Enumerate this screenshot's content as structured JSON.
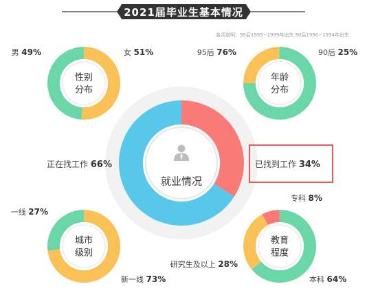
{
  "title": "2021届毕业生基本情况",
  "note": "名词说明：95后1995~1999年出生  90后1990~1994年出生",
  "colors": {
    "green": "#6bd6a7",
    "yellow": "#fac156",
    "blue": "#58c8ea",
    "red": "#fa7a78",
    "title_bg": "#333333",
    "highlight": "#e0312e"
  },
  "chart_data": [
    {
      "type": "pie",
      "title": "性别分布",
      "center_lines": [
        "性别",
        "分布"
      ],
      "slices": [
        {
          "label": "男",
          "value": 49,
          "pct_text": "49%",
          "color": "#6bd6a7"
        },
        {
          "label": "女",
          "value": 51,
          "pct_text": "51%",
          "color": "#fac156"
        }
      ]
    },
    {
      "type": "pie",
      "title": "年龄分布",
      "center_lines": [
        "年龄",
        "分布"
      ],
      "slices": [
        {
          "label": "95后",
          "value": 76,
          "pct_text": "76%",
          "color": "#6bd6a7"
        },
        {
          "label": "90后",
          "value": 25,
          "pct_text": "25%",
          "color": "#fac156"
        }
      ]
    },
    {
      "type": "pie",
      "title": "就业情况",
      "center_lines": [
        "就业情况"
      ],
      "slices": [
        {
          "label": "正在找工作",
          "value": 66,
          "pct_text": "66%",
          "color": "#58c8ea"
        },
        {
          "label": "已找到工作",
          "value": 34,
          "pct_text": "34%",
          "color": "#fa7a78"
        }
      ]
    },
    {
      "type": "pie",
      "title": "城市级别",
      "center_lines": [
        "城市",
        "级别"
      ],
      "slices": [
        {
          "label": "一线",
          "value": 27,
          "pct_text": "27%",
          "color": "#6bd6a7"
        },
        {
          "label": "新一线",
          "value": 73,
          "pct_text": "73%",
          "color": "#fac156"
        }
      ]
    },
    {
      "type": "pie",
      "title": "教育程度",
      "center_lines": [
        "教育",
        "程度"
      ],
      "slices": [
        {
          "label": "专科",
          "value": 8,
          "pct_text": "8%",
          "color": "#fa7a78"
        },
        {
          "label": "本科",
          "value": 64,
          "pct_text": "64%",
          "color": "#6bd6a7"
        },
        {
          "label": "研究生及以上",
          "value": 28,
          "pct_text": "28%",
          "color": "#fac156"
        }
      ]
    }
  ]
}
